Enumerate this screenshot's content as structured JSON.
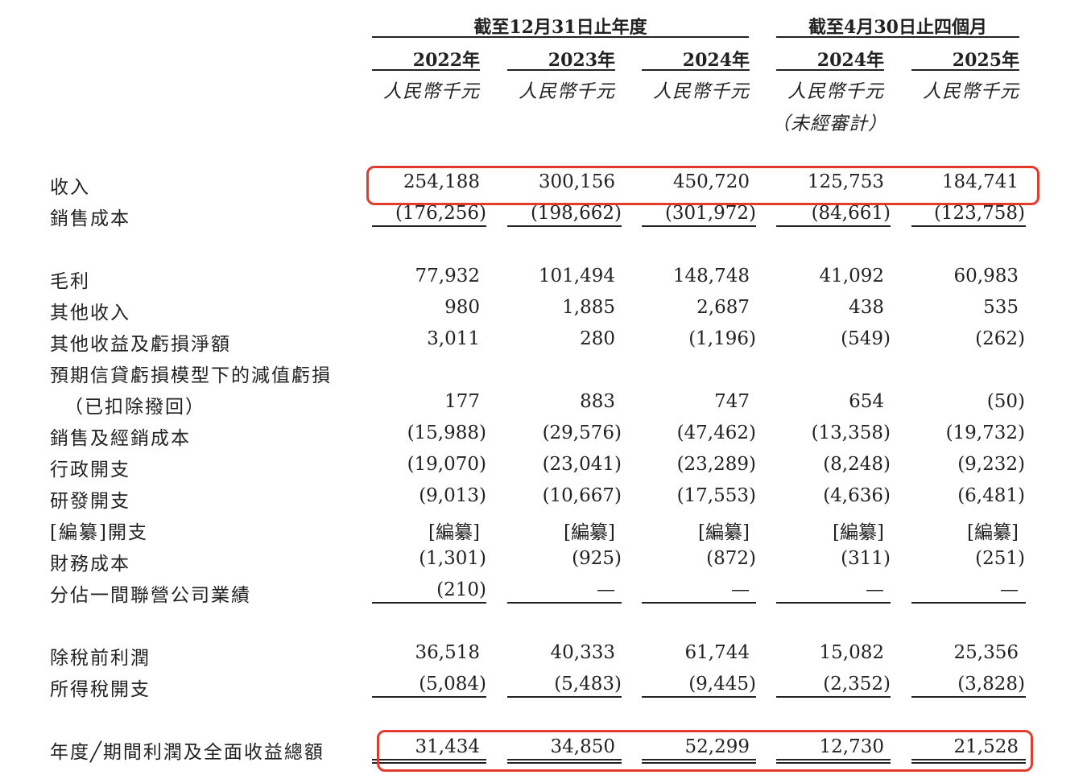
{
  "header": {
    "groups": [
      {
        "label": "截至12月31日止年度"
      },
      {
        "label": "截至4月30日止四個月"
      }
    ],
    "columns": [
      {
        "year": "2022年",
        "unit": "人民幣千元",
        "note": ""
      },
      {
        "year": "2023年",
        "unit": "人民幣千元",
        "note": ""
      },
      {
        "year": "2024年",
        "unit": "人民幣千元",
        "note": ""
      },
      {
        "year": "2024年",
        "unit": "人民幣千元",
        "note": "（未經審計）"
      },
      {
        "year": "2025年",
        "unit": "人民幣千元",
        "note": ""
      }
    ]
  },
  "rows": [
    {
      "label": "收入",
      "values": [
        "254,188",
        "300,156",
        "450,720",
        "125,753",
        "184,741"
      ],
      "highlighted": true
    },
    {
      "label": "銷售成本",
      "values": [
        "(176,256)",
        "(198,662)",
        "(301,972)",
        "(84,661)",
        "(123,758)"
      ]
    },
    {
      "label": "毛利",
      "values": [
        "77,932",
        "101,494",
        "148,748",
        "41,092",
        "60,983"
      ]
    },
    {
      "label": "其他收入",
      "values": [
        "980",
        "1,885",
        "2,687",
        "438",
        "535"
      ]
    },
    {
      "label": "其他收益及虧損淨額",
      "values": [
        "3,011",
        "280",
        "(1,196)",
        "(549)",
        "(262)"
      ]
    },
    {
      "label": "預期信貸虧損模型下的減值虧損",
      "values": [
        "",
        "",
        "",
        "",
        ""
      ]
    },
    {
      "label": "（已扣除撥回）",
      "values": [
        "177",
        "883",
        "747",
        "654",
        "(50)"
      ]
    },
    {
      "label": "銷售及經銷成本",
      "values": [
        "(15,988)",
        "(29,576)",
        "(47,462)",
        "(13,358)",
        "(19,732)"
      ]
    },
    {
      "label": "行政開支",
      "values": [
        "(19,070)",
        "(23,041)",
        "(23,289)",
        "(8,248)",
        "(9,232)"
      ]
    },
    {
      "label": "研發開支",
      "values": [
        "(9,013)",
        "(10,667)",
        "(17,553)",
        "(4,636)",
        "(6,481)"
      ]
    },
    {
      "label": "[編纂]開支",
      "values": [
        "[編纂]",
        "[編纂]",
        "[編纂]",
        "[編纂]",
        "[編纂]"
      ]
    },
    {
      "label": "財務成本",
      "values": [
        "(1,301)",
        "(925)",
        "(872)",
        "(311)",
        "(251)"
      ]
    },
    {
      "label": "分佔一間聯營公司業績",
      "values": [
        "(210)",
        "—",
        "—",
        "—",
        "—"
      ]
    },
    {
      "label": "除稅前利潤",
      "values": [
        "36,518",
        "40,333",
        "61,744",
        "15,082",
        "25,356"
      ]
    },
    {
      "label": "所得稅開支",
      "values": [
        "(5,084)",
        "(5,483)",
        "(9,445)",
        "(2,352)",
        "(3,828)"
      ]
    },
    {
      "label": "年度╱期間利潤及全面收益總額",
      "values": [
        "31,434",
        "34,850",
        "52,299",
        "12,730",
        "21,528"
      ],
      "highlighted": true
    }
  ],
  "highlight_color": "#e23b2e"
}
